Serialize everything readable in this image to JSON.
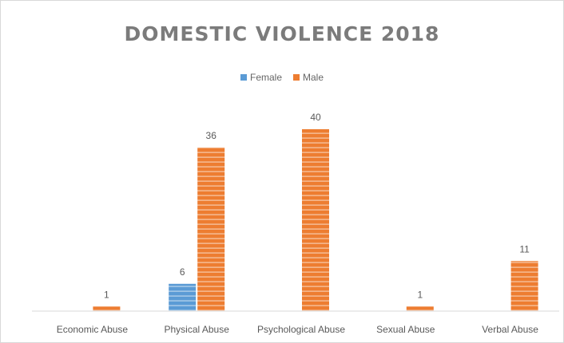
{
  "chart_data": {
    "type": "bar",
    "title": "DOMESTIC VIOLENCE 2018",
    "xlabel": "",
    "ylabel": "",
    "categories": [
      "Economic Abuse",
      "Physical Abuse",
      "Psychological Abuse",
      "Sexual Abuse",
      "Verbal Abuse"
    ],
    "series": [
      {
        "name": "Female",
        "values": [
          null,
          6,
          null,
          null,
          null
        ],
        "color": "#5b9bd5"
      },
      {
        "name": "Male",
        "values": [
          1,
          36,
          40,
          1,
          11
        ],
        "color": "#ed7d31"
      }
    ],
    "ylim": [
      0,
      45
    ],
    "grid": false,
    "legend_position": "top",
    "data_labels": true,
    "bar_pattern": "horizontal-stripes"
  }
}
